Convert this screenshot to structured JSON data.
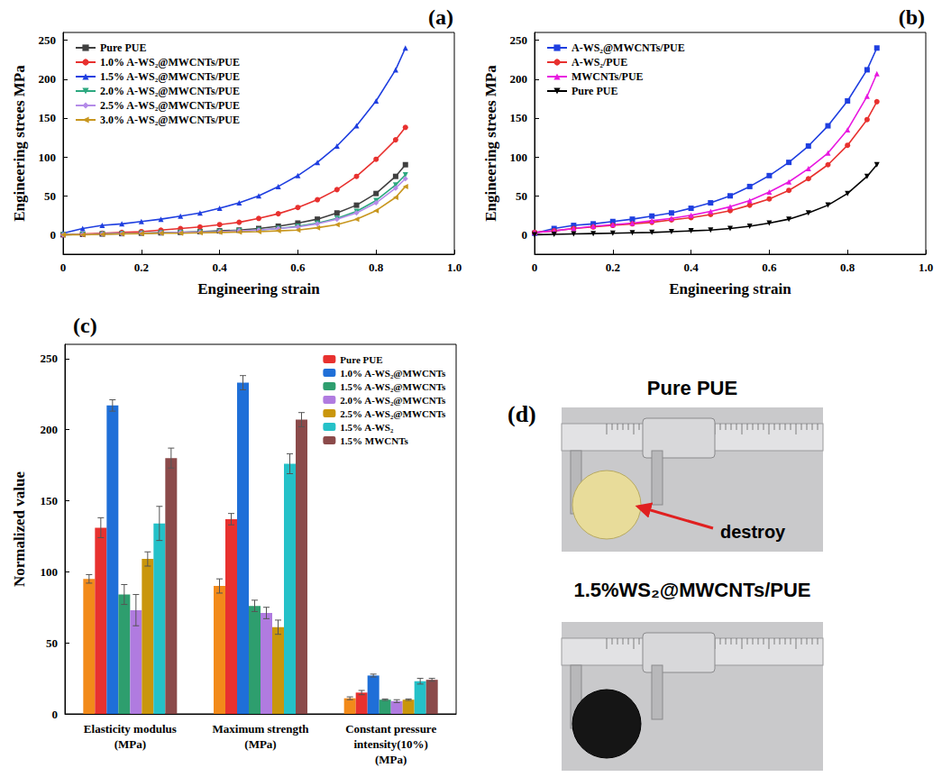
{
  "chart_data": [
    {
      "type": "line",
      "title": "(a)",
      "x_label": "Engineering strain",
      "y_label": "Engineering strees MPa",
      "x": [
        0,
        0.05,
        0.1,
        0.15,
        0.2,
        0.25,
        0.3,
        0.35,
        0.4,
        0.45,
        0.5,
        0.55,
        0.6,
        0.65,
        0.7,
        0.75,
        0.8,
        0.85,
        0.875
      ],
      "series": [
        {
          "name": "Pure PUE",
          "color": "#404040",
          "marker": "square",
          "line_style": "solid",
          "values": [
            0,
            0.5,
            1,
            1.5,
            2,
            2.5,
            3,
            4,
            5,
            6,
            8,
            11,
            15,
            20,
            28,
            38,
            53,
            75,
            90
          ]
        },
        {
          "name": "1.0% A-WS₂@MWCNTs/PUE",
          "color": "#e8312f",
          "marker": "circle",
          "line_style": "solid",
          "values": [
            0,
            1,
            2,
            3,
            4,
            6,
            8,
            10,
            13,
            16,
            21,
            27,
            35,
            45,
            58,
            75,
            97,
            122,
            138
          ]
        },
        {
          "name": "1.5% A-WS₂@MWCNTs/PUE",
          "color": "#1f3fe0",
          "marker": "triangle",
          "line_style": "solid",
          "values": [
            2,
            8,
            12,
            14,
            17,
            20,
            24,
            28,
            34,
            41,
            50,
            62,
            76,
            93,
            114,
            140,
            172,
            212,
            240
          ]
        },
        {
          "name": "2.0% A-WS₂@MWCNTs/PUE",
          "color": "#2ca87f",
          "marker": "triangle_down",
          "line_style": "solid",
          "values": [
            0,
            0.5,
            1,
            1.5,
            2,
            2.5,
            3,
            3.5,
            4,
            5,
            6,
            8,
            11,
            15,
            21,
            30,
            44,
            64,
            77
          ]
        },
        {
          "name": "2.5% A-WS₂@MWCNTs/PUE",
          "color": "#b48be8",
          "marker": "diamond",
          "line_style": "solid",
          "values": [
            0,
            0.5,
            1,
            1.5,
            2,
            2.5,
            3,
            3.5,
            4,
            5,
            6,
            8,
            10,
            14,
            20,
            28,
            41,
            60,
            72
          ]
        },
        {
          "name": "3.0% A-WS₂@MWCNTs/PUE",
          "color": "#c8961e",
          "marker": "triangle_left",
          "line_style": "solid",
          "values": [
            0,
            0,
            0.5,
            1,
            1.5,
            2,
            2,
            2.5,
            3,
            3.5,
            4,
            5,
            6,
            9,
            13,
            20,
            31,
            48,
            62
          ]
        }
      ],
      "xlim": [
        0,
        1
      ],
      "xticks": [
        0,
        0.2,
        0.4,
        0.6,
        0.8,
        {
          "value": 1,
          "label": "1.0"
        }
      ],
      "ylim": [
        -25,
        260
      ],
      "yticks": [
        0,
        50,
        100,
        150,
        200,
        250
      ],
      "grid": false,
      "legend": "upper left"
    },
    {
      "type": "line",
      "title": "(b)",
      "x_label": "Engineering strain",
      "y_label": "Engineering strees MPa",
      "x": [
        0,
        0.05,
        0.1,
        0.15,
        0.2,
        0.25,
        0.3,
        0.35,
        0.4,
        0.45,
        0.5,
        0.55,
        0.6,
        0.65,
        0.7,
        0.75,
        0.8,
        0.85,
        0.875
      ],
      "series": [
        {
          "name": "A-WS₂@MWCNTs/PUE",
          "color": "#1f3fe0",
          "marker": "square",
          "line_style": "solid",
          "values": [
            2,
            8,
            12,
            14,
            17,
            20,
            24,
            28,
            34,
            41,
            50,
            62,
            76,
            93,
            114,
            140,
            172,
            212,
            240
          ]
        },
        {
          "name": "A-WS₂/PUE",
          "color": "#e8312f",
          "marker": "circle",
          "line_style": "solid",
          "values": [
            3,
            5,
            8,
            10,
            12,
            14,
            16,
            19,
            22,
            26,
            31,
            38,
            46,
            57,
            72,
            90,
            115,
            148,
            171
          ]
        },
        {
          "name": "MWCNTs/PUE",
          "color": "#e818e0",
          "marker": "triangle",
          "line_style": "solid",
          "values": [
            3,
            5,
            8,
            11,
            13,
            15,
            18,
            21,
            25,
            30,
            36,
            44,
            55,
            68,
            85,
            105,
            135,
            178,
            207
          ]
        },
        {
          "name": "Pure PUE",
          "color": "#000000",
          "marker": "triangle_down",
          "line_style": "solid",
          "values": [
            0,
            0.5,
            1,
            1.5,
            2,
            2.5,
            3,
            4,
            5,
            6,
            8,
            11,
            15,
            20,
            28,
            38,
            53,
            75,
            90
          ]
        }
      ],
      "xlim": [
        0,
        1
      ],
      "xticks": [
        0,
        0.2,
        0.4,
        0.6,
        0.8,
        {
          "value": 1,
          "label": "1.0"
        }
      ],
      "ylim": [
        -25,
        260
      ],
      "yticks": [
        0,
        50,
        100,
        150,
        200,
        250
      ],
      "grid": false,
      "legend": "upper left"
    },
    {
      "type": "bar",
      "title": "(c)",
      "y_label": "Normalized value",
      "categories": [
        "Elasticity modulus\n(MPa)",
        "Maximum strength\n(MPa)",
        "Constant pressure\nintensity(10%)\n(MPa)"
      ],
      "series": [
        {
          "name": null,
          "color": "#f28a1a",
          "values": [
            95,
            90,
            11
          ],
          "errors": [
            3,
            5,
            1
          ]
        },
        {
          "name": "Pure PUE",
          "color": "#e8312f",
          "values": [
            131,
            137,
            15
          ],
          "errors": [
            7,
            4,
            1.5
          ]
        },
        {
          "name": "1.0% A-WS₂@MWCNTs",
          "color": "#1f6fd8",
          "values": [
            217,
            233,
            27
          ],
          "errors": [
            4,
            5,
            1
          ]
        },
        {
          "name": "1.5% A-WS₂@MWCNTs",
          "color": "#2e9e6e",
          "values": [
            84,
            76,
            10
          ],
          "errors": [
            7,
            4,
            0.5
          ]
        },
        {
          "name": "2.0% A-WS₂@MWCNTs",
          "color": "#b07be0",
          "values": [
            73,
            71,
            9
          ],
          "errors": [
            11,
            4,
            1
          ]
        },
        {
          "name": "2.5% A-WS₂@MWCNTs",
          "color": "#c9960c",
          "values": [
            109,
            61,
            10
          ],
          "errors": [
            5,
            5,
            0.5
          ]
        },
        {
          "name": "1.5% A-WS₂",
          "color": "#25c1c8",
          "values": [
            134,
            176,
            23
          ],
          "errors": [
            12,
            7,
            2
          ]
        },
        {
          "name": "1.5% MWCNTs",
          "color": "#8b4a4a",
          "values": [
            180,
            207,
            24
          ],
          "errors": [
            7,
            5,
            1
          ]
        }
      ],
      "ylim": [
        0,
        260
      ],
      "yticks": [
        0,
        50,
        100,
        150,
        200,
        250
      ],
      "grid": false,
      "legend": "upper right"
    }
  ],
  "photos": {
    "label": "(d)",
    "panels": [
      {
        "title": "Pure PUE",
        "annotation": "destroy"
      },
      {
        "title": "1.5%WS₂@MWCNTs/PUE"
      }
    ]
  }
}
